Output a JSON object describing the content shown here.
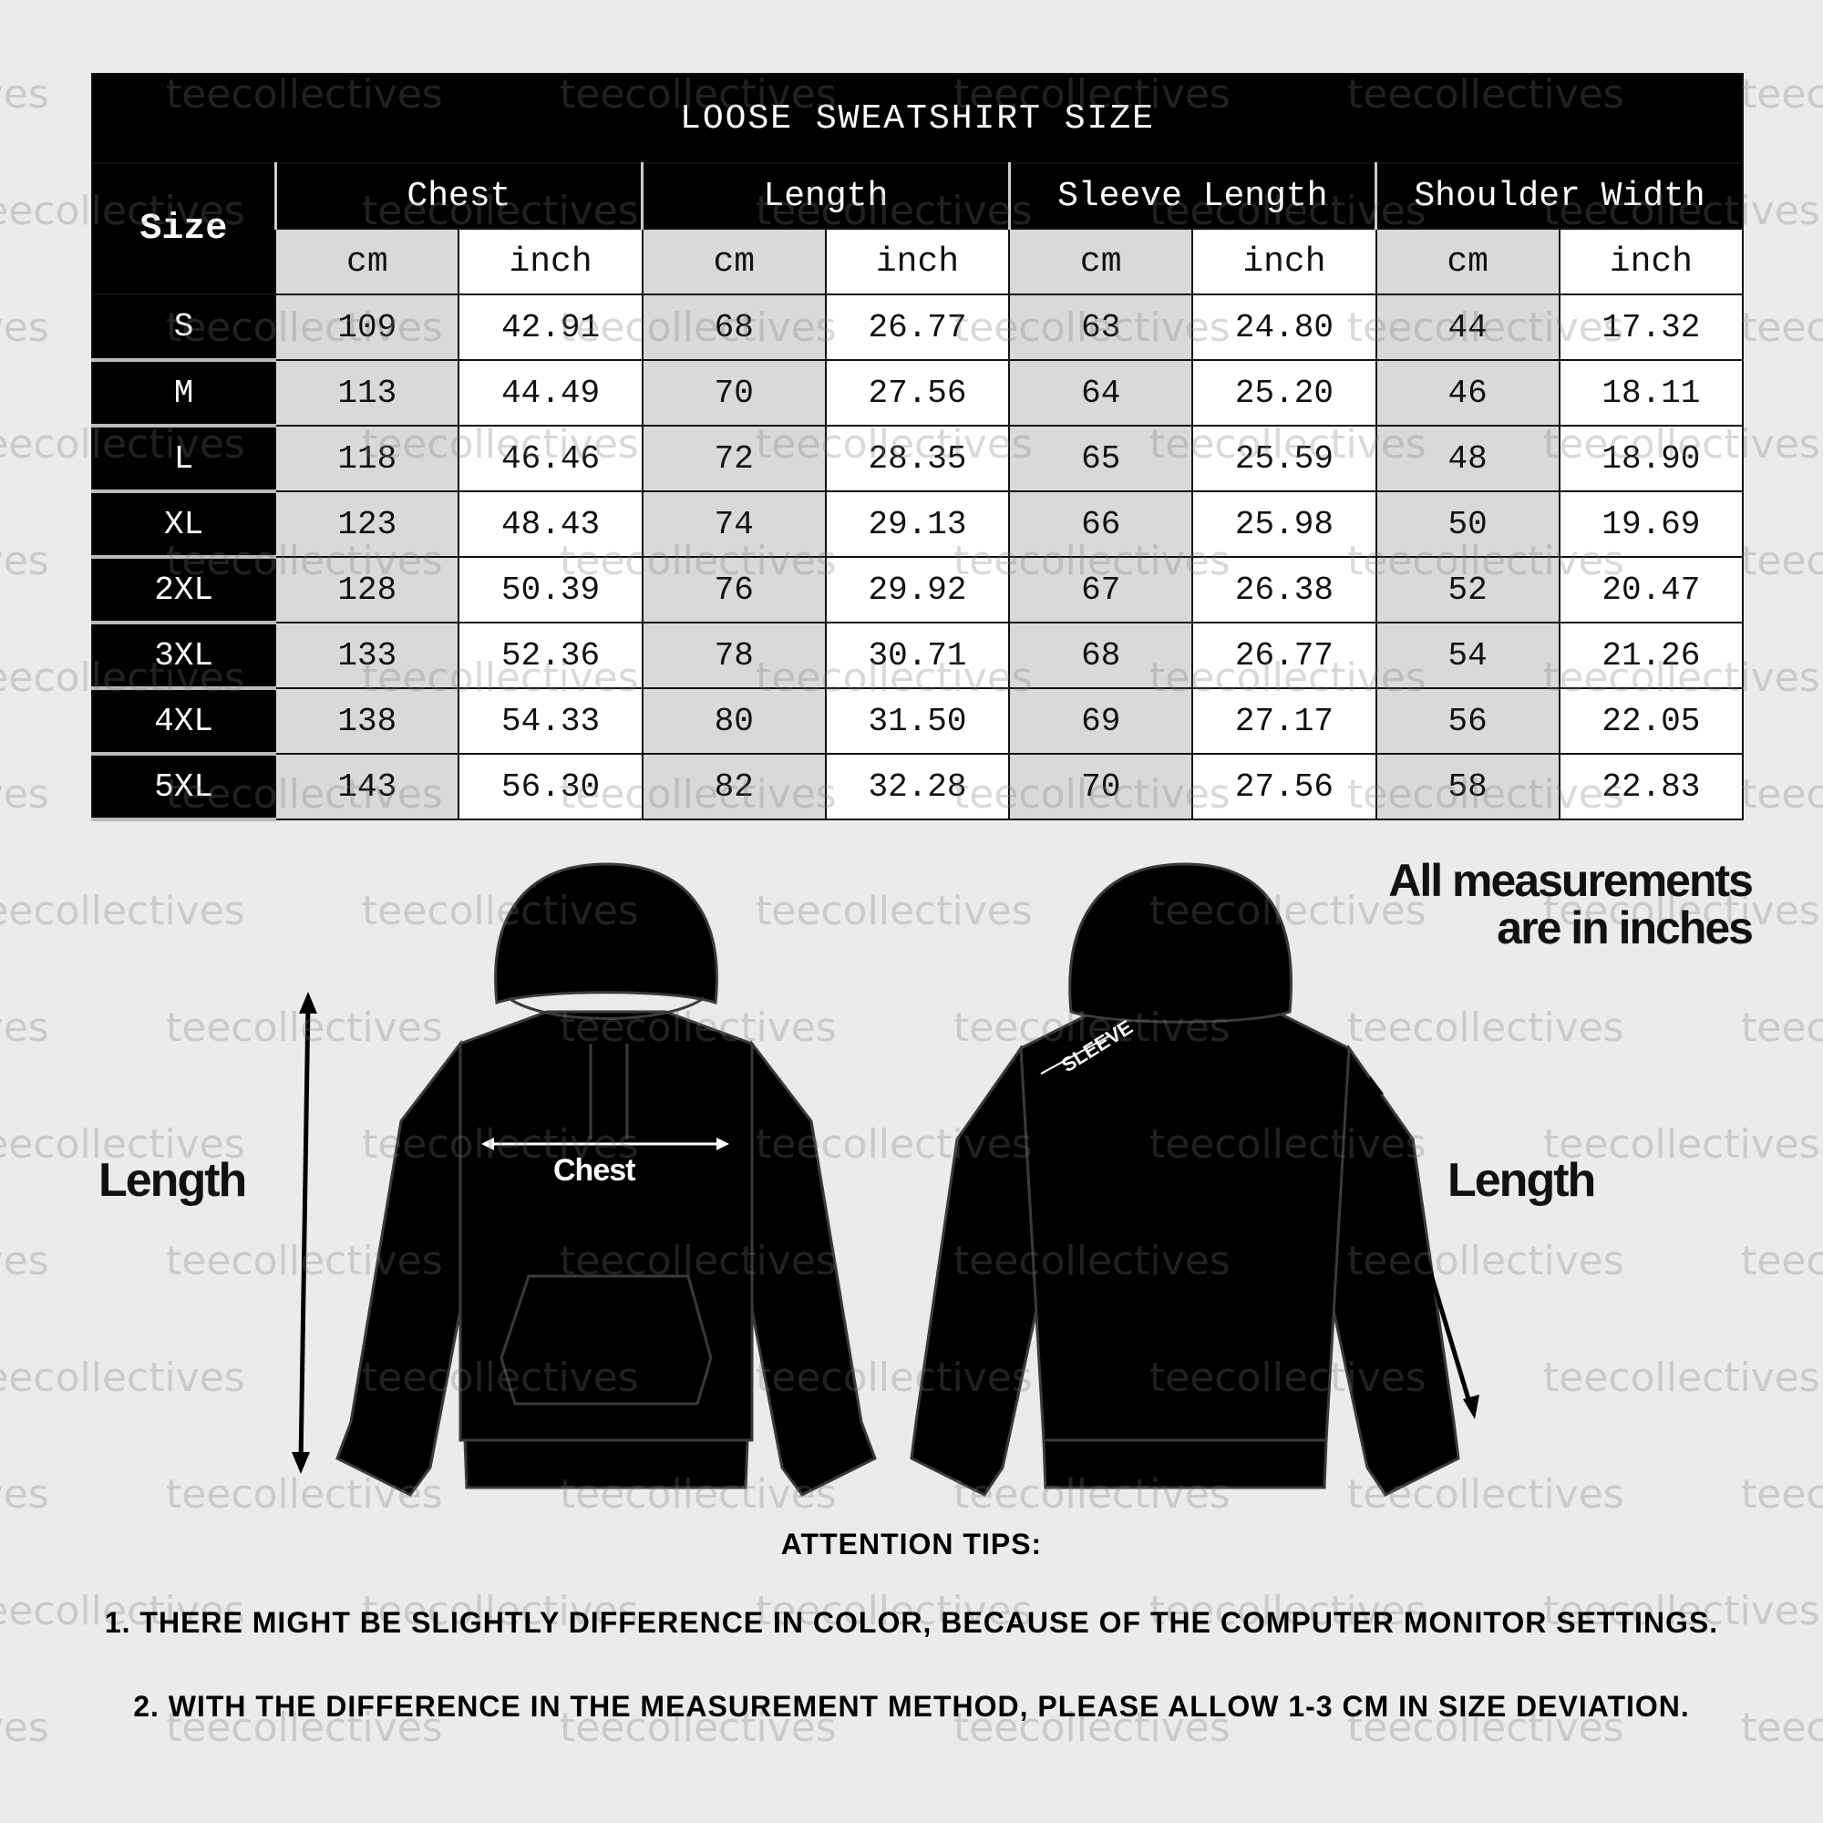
{
  "table": {
    "title": "LOOSE SWEATSHIRT SIZE",
    "size_header": "Size",
    "groups": [
      "Chest",
      "Length",
      "Sleeve Length",
      "Shoulder Width"
    ],
    "units": [
      "cm",
      "inch"
    ],
    "rows": [
      {
        "size": "S",
        "values": [
          "109",
          "42.91",
          "68",
          "26.77",
          "63",
          "24.80",
          "44",
          "17.32"
        ]
      },
      {
        "size": "M",
        "values": [
          "113",
          "44.49",
          "70",
          "27.56",
          "64",
          "25.20",
          "46",
          "18.11"
        ]
      },
      {
        "size": "L",
        "values": [
          "118",
          "46.46",
          "72",
          "28.35",
          "65",
          "25.59",
          "48",
          "18.90"
        ]
      },
      {
        "size": "XL",
        "values": [
          "123",
          "48.43",
          "74",
          "29.13",
          "66",
          "25.98",
          "50",
          "19.69"
        ]
      },
      {
        "size": "2XL",
        "values": [
          "128",
          "50.39",
          "76",
          "29.92",
          "67",
          "26.38",
          "52",
          "20.47"
        ]
      },
      {
        "size": "3XL",
        "values": [
          "133",
          "52.36",
          "78",
          "30.71",
          "68",
          "26.77",
          "54",
          "21.26"
        ]
      },
      {
        "size": "4XL",
        "values": [
          "138",
          "54.33",
          "80",
          "31.50",
          "69",
          "27.17",
          "56",
          "22.05"
        ]
      },
      {
        "size": "5XL",
        "values": [
          "143",
          "56.30",
          "82",
          "32.28",
          "70",
          "27.56",
          "58",
          "22.83"
        ]
      }
    ]
  },
  "diagram": {
    "front_length_label": "Length",
    "chest_label": "Chest",
    "sleeve_label": "SLEEVE",
    "back_length_label": "Length",
    "note_line1": "All measurements",
    "note_line2": "are in inches"
  },
  "tips": {
    "heading": "ATTENTION TIPS:",
    "items": [
      "1. THERE MIGHT BE SLIGHTLY DIFFERENCE IN COLOR, BECAUSE OF THE COMPUTER MONITOR SETTINGS.",
      "2. WITH THE DIFFERENCE IN THE MEASUREMENT METHOD, PLEASE ALLOW 1-3 CM IN SIZE DEVIATION."
    ]
  },
  "watermark": "teecollectives",
  "colors": {
    "background": "#ebebeb",
    "header": "#000000",
    "cm_column": "#d9d9d9",
    "inch_column": "#ffffff"
  }
}
